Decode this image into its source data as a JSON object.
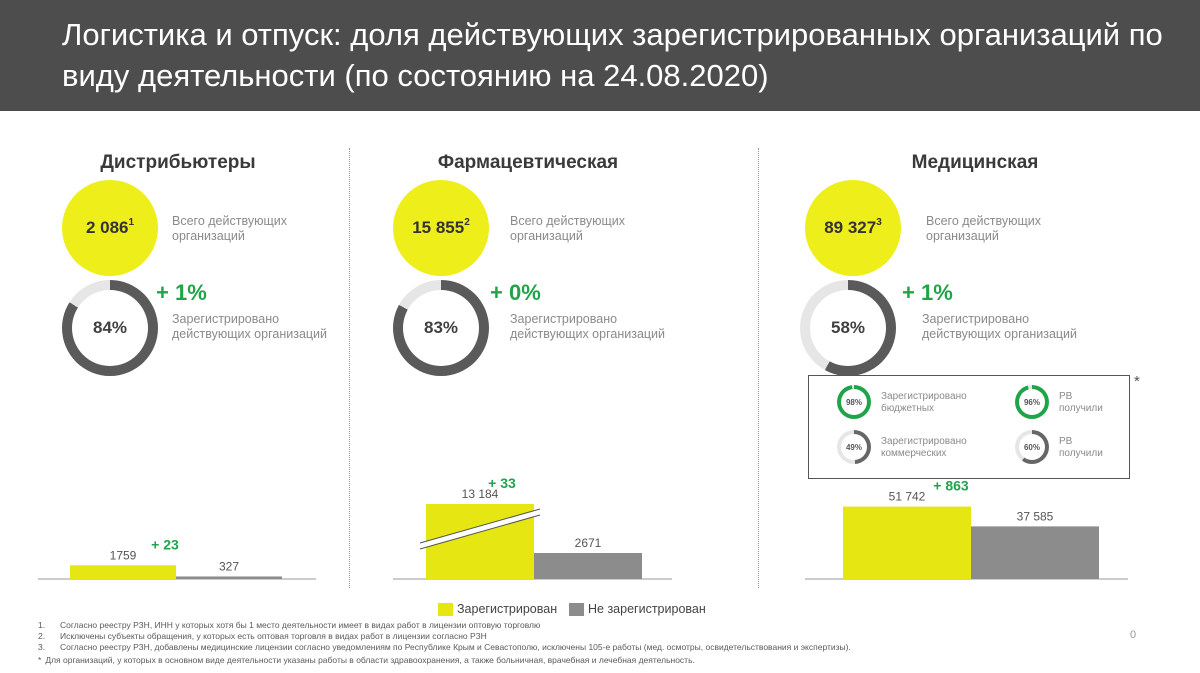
{
  "title": "Логистика и отпуск: доля действующих зарегистрированных организаций по виду деятельности (по состоянию на 24.08.2020)",
  "columns": [
    {
      "name": "Дистрибьютеры",
      "total_value": "2 086",
      "total_sup": "1",
      "total_label_line1": "Всего действующих",
      "total_label_line2": "организаций",
      "registered_pct_label": "84%",
      "registered_fraction": 0.84,
      "delta": "+ 1%",
      "registered_label_line1": "Зарегистрировано",
      "registered_label_line2": "действующих организаций"
    },
    {
      "name": "Фармацевтическая",
      "total_value": "15 855",
      "total_sup": "2",
      "total_label_line1": "Всего действующих",
      "total_label_line2": "организаций",
      "registered_pct_label": "83%",
      "registered_fraction": 0.83,
      "delta": "+ 0%",
      "registered_label_line1": "Зарегистрировано",
      "registered_label_line2": "действующих организаций"
    },
    {
      "name": "Медицинская",
      "total_value": "89 327",
      "total_sup": "3",
      "total_label_line1": "Всего действующих",
      "total_label_line2": "организаций",
      "registered_pct_label": "58%",
      "registered_fraction": 0.58,
      "delta": "+ 1%",
      "registered_label_line1": "Зарегистрировано",
      "registered_label_line2": "действующих организаций"
    }
  ],
  "medical_breakdown": {
    "star": "*",
    "items": [
      {
        "pct_label": "98%",
        "fraction": 0.98,
        "color": "#1fa44a",
        "line1": "Зарегистрировано",
        "line2": "бюджетных"
      },
      {
        "pct_label": "96%",
        "fraction": 0.96,
        "color": "#1fa44a",
        "line1": "РВ",
        "line2": "получили"
      },
      {
        "pct_label": "49%",
        "fraction": 0.49,
        "color": "#666666",
        "line1": "Зарегистрировано",
        "line2": "коммерческих"
      },
      {
        "pct_label": "60%",
        "fraction": 0.6,
        "color": "#666666",
        "line1": "РВ",
        "line2": "получили"
      }
    ]
  },
  "chart_data": [
    {
      "type": "bar",
      "categories": [
        "Зарегистрирован",
        "Не зарегистрирован"
      ],
      "values": [
        1759,
        327
      ],
      "value_labels": [
        "1759",
        "327"
      ],
      "delta_label": "+ 23",
      "broken_axis": false
    },
    {
      "type": "bar",
      "categories": [
        "Зарегистрирован",
        "Не зарегистрирован"
      ],
      "values": [
        13184,
        2671
      ],
      "value_labels": [
        "13 184",
        "2671"
      ],
      "delta_label": "+ 33",
      "broken_axis": true
    },
    {
      "type": "bar",
      "categories": [
        "Зарегистрирован",
        "Не зарегистрирован"
      ],
      "values": [
        51742,
        37585
      ],
      "value_labels": [
        "51 742",
        "37 585"
      ],
      "delta_label": "+ 863",
      "broken_axis": false
    }
  ],
  "legend": {
    "registered": "Зарегистрирован",
    "not_registered": "Не зарегистрирован"
  },
  "colors": {
    "yellow": "#eeee1b",
    "bar_yellow": "#e5e612",
    "gray": "#8c8c8c",
    "dark_gray": "#5a5a5a",
    "green": "#1fa44a",
    "header_bg": "#4d4d4d"
  },
  "footnotes": [
    {
      "num": "1.",
      "text": "Согласно реестру РЗН, ИНН у которых хотя бы 1 место деятельности имеет в видах работ в лицензии оптовую торговлю"
    },
    {
      "num": "2.",
      "text": "Исключены субъекты обращения, у которых есть оптовая торговля в видах работ в лицензии согласно РЗН"
    },
    {
      "num": "3.",
      "text": "Согласно реестру РЗН, добавлены медицинские лицензии согласно уведомлениям по Республике Крым и Севастополю, исключены 105-е работы (мед. осмотры, освидетельствования и экспертизы)."
    },
    {
      "num": "*",
      "text": "Для организаций, у которых в основном виде деятельности указаны работы в области здравоохранения, а также больничная, врачебная и лечебная деятельность."
    }
  ],
  "page_number": "0"
}
